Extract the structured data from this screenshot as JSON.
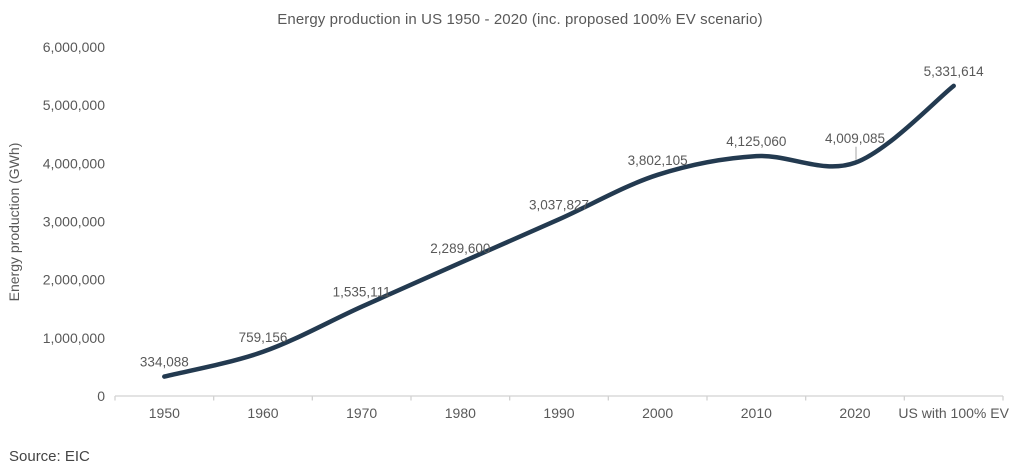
{
  "page": {
    "source_note": "Source: EIC"
  },
  "chart_data": {
    "type": "line",
    "title": "Energy production in US 1950 - 2020 (inc. proposed 100% EV scenario)",
    "ylabel": "Energy production (GWh)",
    "xlabel": "",
    "categories": [
      "1950",
      "1960",
      "1970",
      "1980",
      "1990",
      "2000",
      "2010",
      "2020",
      "US with 100% EV"
    ],
    "values": [
      334088,
      759156,
      1535111,
      2289600,
      3037827,
      3802105,
      4125060,
      4009085,
      5331614
    ],
    "data_labels": [
      "334,088",
      "759,156",
      "1,535,111",
      "2,289,600",
      "3,037,827",
      "3,802,105",
      "4,125,060",
      "4,009,085",
      "5,331,614"
    ],
    "y_tick_values": [
      0,
      1000000,
      2000000,
      3000000,
      4000000,
      5000000,
      6000000
    ],
    "y_tick_labels": [
      "0",
      "1,000,000",
      "2,000,000",
      "3,000,000",
      "4,000,000",
      "5,000,000",
      "6,000,000"
    ],
    "ylim": [
      0,
      6000000
    ],
    "grid": false,
    "legend": "none",
    "smooth": true,
    "line_color": "#233A50",
    "text_color": "#595959",
    "axis_color": "#D2D2D2",
    "leader_line_color": "#A6A6A6"
  }
}
